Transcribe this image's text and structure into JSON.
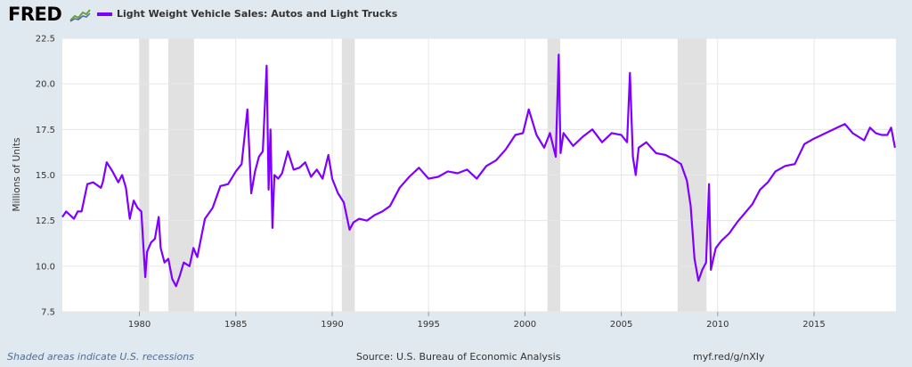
{
  "header": {
    "logo_text": "FRED",
    "logo_icon": "line-chart-icon"
  },
  "footer": {
    "note": "Shaded areas indicate U.S. recessions",
    "source": "Source: U.S. Bureau of Economic Analysis",
    "link": "myf.red/g/nXIy"
  },
  "colors": {
    "series": "#7f00ff",
    "recession": "#e1e1e1",
    "background": "#e1e9f0"
  },
  "chart_data": {
    "type": "line",
    "title": "",
    "xlabel": "",
    "ylabel": "Millions of Units",
    "xlim": [
      1976.0,
      2019.25
    ],
    "ylim": [
      7.5,
      22.5
    ],
    "yticks": [
      "7.5",
      "10.0",
      "12.5",
      "15.0",
      "17.5",
      "20.0",
      "22.5"
    ],
    "xticks": [
      "1980",
      "1985",
      "1990",
      "1995",
      "2000",
      "2005",
      "2010",
      "2015"
    ],
    "grid": true,
    "legend_position": "top-left",
    "recessions": [
      [
        1980.0,
        1980.5
      ],
      [
        1981.5,
        1982.83
      ],
      [
        1990.5,
        1991.17
      ],
      [
        2001.17,
        2001.83
      ],
      [
        2007.92,
        2009.42
      ]
    ],
    "series": [
      {
        "name": "Light Weight Vehicle Sales: Autos and Light Trucks",
        "x": [
          1976.0,
          1976.2,
          1976.4,
          1976.6,
          1976.8,
          1977.0,
          1977.3,
          1977.6,
          1978.0,
          1978.1,
          1978.3,
          1978.6,
          1978.9,
          1979.1,
          1979.3,
          1979.5,
          1979.7,
          1979.9,
          1980.1,
          1980.3,
          1980.4,
          1980.6,
          1980.8,
          1981.0,
          1981.1,
          1981.3,
          1981.5,
          1981.7,
          1981.9,
          1982.1,
          1982.3,
          1982.6,
          1982.8,
          1983.0,
          1983.4,
          1983.8,
          1984.2,
          1984.6,
          1985.0,
          1985.3,
          1985.6,
          1985.8,
          1986.0,
          1986.2,
          1986.4,
          1986.6,
          1986.7,
          1986.8,
          1986.9,
          1987.0,
          1987.2,
          1987.4,
          1987.7,
          1988.0,
          1988.3,
          1988.6,
          1988.9,
          1989.2,
          1989.5,
          1989.8,
          1990.0,
          1990.3,
          1990.6,
          1990.9,
          1991.1,
          1991.4,
          1991.8,
          1992.2,
          1992.6,
          1993.0,
          1993.5,
          1994.0,
          1994.5,
          1995.0,
          1995.5,
          1996.0,
          1996.5,
          1997.0,
          1997.5,
          1998.0,
          1998.5,
          1999.0,
          1999.5,
          1999.9,
          2000.2,
          2000.6,
          2001.0,
          2001.3,
          2001.6,
          2001.75,
          2001.85,
          2002.0,
          2002.5,
          2003.0,
          2003.5,
          2004.0,
          2004.5,
          2005.0,
          2005.3,
          2005.45,
          2005.6,
          2005.75,
          2005.9,
          2006.3,
          2006.8,
          2007.3,
          2007.8,
          2008.1,
          2008.4,
          2008.6,
          2008.8,
          2009.0,
          2009.2,
          2009.4,
          2009.55,
          2009.65,
          2009.75,
          2009.9,
          2010.2,
          2010.6,
          2011.0,
          2011.4,
          2011.8,
          2012.2,
          2012.6,
          2013.0,
          2013.5,
          2014.0,
          2014.5,
          2015.0,
          2015.4,
          2015.8,
          2016.2,
          2016.6,
          2017.0,
          2017.3,
          2017.6,
          2017.9,
          2018.2,
          2018.5,
          2018.8,
          2019.0,
          2019.2
        ],
        "values": [
          12.7,
          13.0,
          12.8,
          12.6,
          13.0,
          13.0,
          14.5,
          14.6,
          14.3,
          14.6,
          15.7,
          15.2,
          14.6,
          15.0,
          14.3,
          12.6,
          13.6,
          13.2,
          13.0,
          9.4,
          10.8,
          11.3,
          11.5,
          12.7,
          11.0,
          10.2,
          10.4,
          9.3,
          8.9,
          9.5,
          10.2,
          10.0,
          11.0,
          10.5,
          12.6,
          13.2,
          14.4,
          14.5,
          15.2,
          15.6,
          18.6,
          14.0,
          15.2,
          16.0,
          16.3,
          21.0,
          14.2,
          17.5,
          12.1,
          15.0,
          14.8,
          15.1,
          16.3,
          15.3,
          15.4,
          15.7,
          14.9,
          15.3,
          14.8,
          16.1,
          14.8,
          14.0,
          13.5,
          12.0,
          12.4,
          12.6,
          12.5,
          12.8,
          13.0,
          13.3,
          14.3,
          14.9,
          15.4,
          14.8,
          14.9,
          15.2,
          15.1,
          15.3,
          14.8,
          15.5,
          15.8,
          16.4,
          17.2,
          17.3,
          18.6,
          17.2,
          16.5,
          17.3,
          16.0,
          21.6,
          16.2,
          17.3,
          16.6,
          17.1,
          17.5,
          16.8,
          17.3,
          17.2,
          16.8,
          20.6,
          16.0,
          15.0,
          16.5,
          16.8,
          16.2,
          16.1,
          15.8,
          15.6,
          14.7,
          13.3,
          10.4,
          9.2,
          9.8,
          10.2,
          14.5,
          9.8,
          10.3,
          11.0,
          11.4,
          11.8,
          12.4,
          12.9,
          13.4,
          14.2,
          14.6,
          15.2,
          15.5,
          15.6,
          16.7,
          17.0,
          17.2,
          17.4,
          17.6,
          17.8,
          17.3,
          17.1,
          16.9,
          17.6,
          17.3,
          17.2,
          17.2,
          17.6,
          16.5
        ]
      }
    ]
  }
}
